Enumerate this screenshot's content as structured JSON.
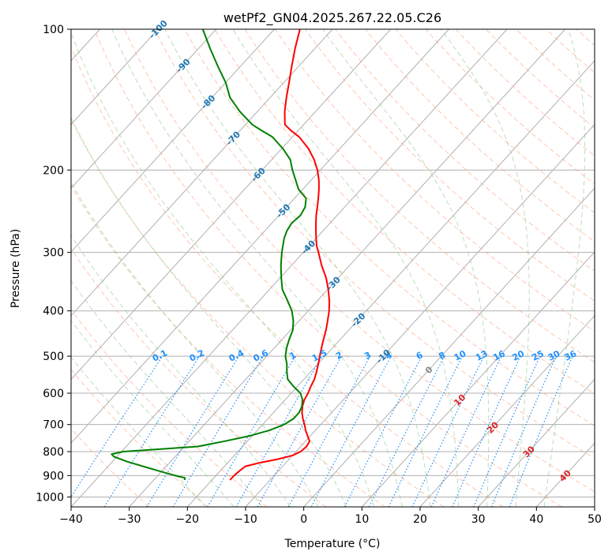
{
  "chart_data": {
    "type": "line",
    "title": "wetPf2_GN04.2025.267.22.05.C26",
    "xlabel": "Temperature (°C)",
    "ylabel": "Pressure (hPa)",
    "xlim": [
      -40,
      50
    ],
    "ylim": [
      1050,
      100
    ],
    "yscale": "log",
    "skew": "skew-T log-P",
    "x_ticks": [
      -40,
      -30,
      -20,
      -10,
      0,
      10,
      20,
      30,
      40,
      50
    ],
    "y_ticks": [
      100,
      200,
      300,
      400,
      500,
      600,
      700,
      800,
      900,
      1000
    ],
    "isotherm_labels": [
      "-100",
      "-90",
      "-80",
      "-70",
      "-60",
      "-50",
      "-40",
      "-30",
      "-20",
      "-10"
    ],
    "isotherm_label_temps": [
      -100,
      -90,
      -80,
      -70,
      -60,
      -50,
      -40,
      -30,
      -20,
      -10
    ],
    "mixing_ratio_labels": [
      "0.1",
      "0.2",
      "0.4",
      "0.6",
      "1",
      "1.5",
      "2",
      "3",
      "4",
      "6",
      "8",
      "10",
      "13",
      "16",
      "20",
      "25",
      "30",
      "36"
    ],
    "mixing_ratio_values": [
      0.1,
      0.2,
      0.4,
      0.6,
      1,
      1.5,
      2,
      3,
      4,
      6,
      8,
      10,
      13,
      16,
      20,
      25,
      30,
      36
    ],
    "high_isotherm_labels": [
      "0",
      "10",
      "20",
      "30",
      "40"
    ],
    "high_isotherm_temps": [
      0,
      10,
      20,
      30,
      40
    ],
    "colors": {
      "temperature": "#ff0000",
      "dewpoint": "#008000",
      "isotherm_label": "#1f77b4",
      "mixing_ratio": "#1e90ff",
      "dry_adiabat": "#ffa07a",
      "moist_adiabat": "#90c890",
      "high_isotherm_label": "#d62728",
      "grid": "#b0b0b0"
    },
    "grid": true,
    "series": [
      {
        "key": "temperature",
        "pressure": [
          920,
          900,
          880,
          860,
          845,
          830,
          815,
          800,
          780,
          760,
          740,
          720,
          700,
          680,
          660,
          640,
          620,
          600,
          580,
          560,
          540,
          520,
          500,
          480,
          460,
          440,
          420,
          400,
          380,
          360,
          340,
          320,
          300,
          290,
          280,
          270,
          260,
          250,
          240,
          230,
          220,
          210,
          200,
          190,
          180,
          170,
          165,
          160,
          150,
          140,
          130,
          120,
          110,
          100
        ],
        "temp": [
          -16.9,
          -16.9,
          -16.7,
          -16.4,
          -14.5,
          -11.9,
          -10,
          -9.2,
          -9.0,
          -9.3,
          -10.5,
          -11.7,
          -12.8,
          -14.0,
          -15.1,
          -16.0,
          -16.7,
          -17.1,
          -17.7,
          -18.2,
          -19.0,
          -19.9,
          -20.9,
          -21.9,
          -22.9,
          -23.9,
          -25.1,
          -26.4,
          -28.0,
          -29.9,
          -32.1,
          -34.8,
          -37.4,
          -38.8,
          -40.0,
          -41.2,
          -42.4,
          -43.6,
          -44.7,
          -45.9,
          -47.2,
          -48.7,
          -50.5,
          -52.7,
          -55.4,
          -58.8,
          -61.1,
          -63.2,
          -65.3,
          -67.2,
          -69.1,
          -71.2,
          -73.4,
          -75.6
        ]
      },
      {
        "key": "dewpoint",
        "pressure": [
          920,
          910,
          900,
          880,
          860,
          840,
          820,
          810,
          800,
          790,
          780,
          760,
          740,
          720,
          700,
          680,
          660,
          640,
          620,
          600,
          580,
          560,
          540,
          520,
          500,
          480,
          460,
          440,
          420,
          400,
          380,
          360,
          340,
          320,
          300,
          280,
          270,
          260,
          250,
          240,
          230,
          220,
          210,
          200,
          190,
          180,
          170,
          165,
          160,
          150,
          140,
          130,
          120,
          110,
          100
        ],
        "temp": [
          -24.7,
          -25.0,
          -27.0,
          -30.5,
          -34.0,
          -37.5,
          -40.5,
          -41.3,
          -39.7,
          -33.6,
          -27.7,
          -23.9,
          -20.4,
          -17.9,
          -16.3,
          -15.6,
          -15.6,
          -16.1,
          -17.0,
          -18.4,
          -20.7,
          -22.8,
          -24.1,
          -25.3,
          -26.8,
          -27.9,
          -28.8,
          -29.6,
          -31.0,
          -32.8,
          -35.2,
          -37.8,
          -39.8,
          -41.8,
          -43.7,
          -45.5,
          -46.2,
          -46.6,
          -46.3,
          -46.8,
          -48.0,
          -50.7,
          -52.7,
          -54.8,
          -56.8,
          -59.8,
          -63.4,
          -66.1,
          -68.8,
          -73.0,
          -76.9,
          -80.0,
          -83.9,
          -88.0,
          -92.3
        ]
      }
    ]
  }
}
